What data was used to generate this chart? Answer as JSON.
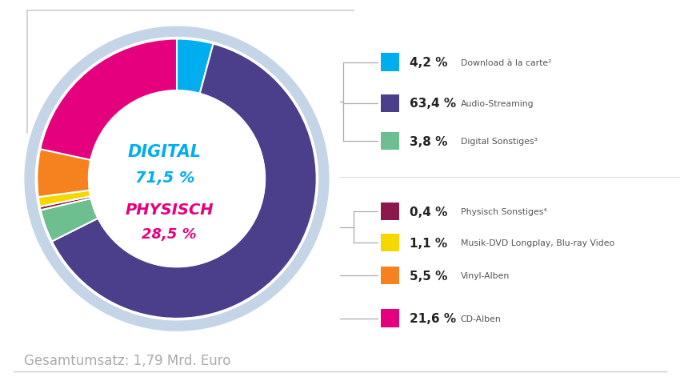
{
  "segments": [
    {
      "label": "Download à la carte²",
      "value": 4.2,
      "color": "#00AEEF",
      "group": "digital"
    },
    {
      "label": "Audio-Streaming",
      "value": 63.4,
      "color": "#4B3F8C",
      "group": "digital"
    },
    {
      "label": "Digital Sonstiges³",
      "value": 3.8,
      "color": "#6DBF8F",
      "group": "digital"
    },
    {
      "label": "Physisch Sonstiges⁴",
      "value": 0.4,
      "color": "#8B1A4A",
      "group": "physisch"
    },
    {
      "label": "Musik-DVD Longplay, Blu-ray Video",
      "value": 1.1,
      "color": "#F5D800",
      "group": "physisch"
    },
    {
      "label": "Vinyl-Alben",
      "value": 5.5,
      "color": "#F5821F",
      "group": "physisch"
    },
    {
      "label": "CD-Alben",
      "value": 21.6,
      "color": "#E5007E",
      "group": "physisch"
    }
  ],
  "outer_ring_color": "#C5D5E8",
  "digital_color": "#00AEEF",
  "physisch_color": "#E5007E",
  "footer_text": "Gesamtumsatz: 1,79 Mrd. Euro",
  "background_color": "#FFFFFF",
  "start_angle": 90,
  "wedge_outer": 0.92,
  "wedge_inner": 0.58,
  "outer_r": 1.0
}
